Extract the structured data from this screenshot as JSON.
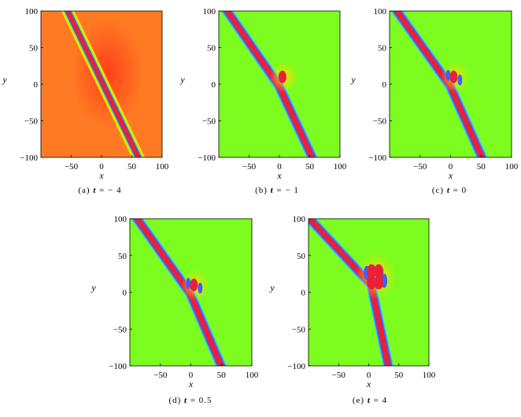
{
  "chart_data": [
    {
      "type": "heatmap",
      "panel": "a",
      "caption": {
        "prefix": "(a)",
        "var": "t",
        "rest": "= − 4"
      },
      "t": -4,
      "xlabel": "x",
      "ylabel": "y",
      "xticks": [
        "−50",
        "0",
        "50",
        "100"
      ],
      "xtick_values": [
        -50,
        0,
        50,
        100
      ],
      "yticks": [
        "100",
        "50",
        "0",
        "−50",
        "−100"
      ],
      "ytick_values": [
        100,
        50,
        0,
        -50,
        -100
      ],
      "xlim": [
        -100,
        100
      ],
      "ylim": [
        -100,
        100
      ],
      "background_color": "#ff7a22",
      "colors": {
        "peak": "#e8203a",
        "edge_low": "#4060ff",
        "edge_mid": "#ffe000",
        "green": "#7cfc1f"
      },
      "soliton_line": {
        "x_at_y100": -62,
        "x_at_y_minus100": 67
      },
      "lump": null
    },
    {
      "type": "heatmap",
      "panel": "b",
      "caption": {
        "prefix": "(b)",
        "var": "t",
        "rest": "= − 1"
      },
      "t": -1,
      "xlabel": "x",
      "ylabel": "y",
      "xticks": [
        "−50",
        "0",
        "50",
        "100"
      ],
      "xtick_values": [
        -50,
        0,
        50,
        100
      ],
      "yticks": [
        "100",
        "50",
        "0",
        "−50",
        "−100"
      ],
      "ytick_values": [
        100,
        50,
        0,
        -50,
        -100
      ],
      "xlim": [
        -100,
        100
      ],
      "ylim": [
        -100,
        100
      ],
      "background_color": "#7cfc1f",
      "colors": {
        "peak": "#e8203a",
        "edge_low": "#4060ff",
        "edge_mid": "#ffe000"
      },
      "soliton_line": {
        "x_at_y100": -90,
        "x_at_y_minus100": 55
      },
      "lump": {
        "x": 5,
        "y": 10
      }
    },
    {
      "type": "heatmap",
      "panel": "c",
      "caption": {
        "prefix": "(c)",
        "var": "t",
        "rest": "= 0"
      },
      "t": 0,
      "xlabel": "x",
      "ylabel": "y",
      "xticks": [
        "−50",
        "0",
        "50",
        "100"
      ],
      "xtick_values": [
        -50,
        0,
        50,
        100
      ],
      "yticks": [
        "100",
        "50",
        "0",
        "−50",
        "−100"
      ],
      "ytick_values": [
        100,
        50,
        0,
        -50,
        -100
      ],
      "xlim": [
        -100,
        100
      ],
      "ylim": [
        -100,
        100
      ],
      "background_color": "#7cfc1f",
      "colors": {
        "peak": "#e8203a",
        "edge_low": "#4060ff",
        "edge_mid": "#ffe000"
      },
      "soliton_line": {
        "x_at_y100": -92,
        "x_at_y_minus100": 52
      },
      "lump": {
        "x": 5,
        "y": 10
      }
    },
    {
      "type": "heatmap",
      "panel": "d",
      "caption": {
        "prefix": "(d)",
        "var": "t",
        "rest": "= 0.5"
      },
      "t": 0.5,
      "xlabel": "x",
      "ylabel": "y",
      "xticks": [
        "−50",
        "0",
        "50",
        "100"
      ],
      "xtick_values": [
        -50,
        0,
        50,
        100
      ],
      "yticks": [
        "100",
        "50",
        "0",
        "−50",
        "−100"
      ],
      "ytick_values": [
        100,
        50,
        0,
        -50,
        -100
      ],
      "xlim": [
        -100,
        100
      ],
      "ylim": [
        -100,
        100
      ],
      "background_color": "#7cfc1f",
      "colors": {
        "peak": "#e8203a",
        "edge_low": "#4060ff",
        "edge_mid": "#ffe000"
      },
      "soliton_line": {
        "x_at_y100": -92,
        "x_at_y_minus100": 50
      },
      "lump": {
        "x": 5,
        "y": 10
      }
    },
    {
      "type": "heatmap",
      "panel": "e",
      "caption": {
        "prefix": "(e)",
        "var": "t",
        "rest": "= 4"
      },
      "t": 4,
      "xlabel": "x",
      "ylabel": "y",
      "xticks": [
        "−50",
        "0",
        "50",
        "100"
      ],
      "xtick_values": [
        -50,
        0,
        50,
        100
      ],
      "yticks": [
        "100",
        "50",
        "0",
        "−50",
        "−100"
      ],
      "ytick_values": [
        100,
        50,
        0,
        -50,
        -100
      ],
      "xlim": [
        -100,
        100
      ],
      "ylim": [
        -100,
        100
      ],
      "background_color": "#7cfc1f",
      "colors": {
        "peak": "#e8203a",
        "edge_low": "#4060ff",
        "edge_mid": "#ffe000"
      },
      "soliton_line": {
        "x_at_y100": -105,
        "x_at_y_minus100": 30
      },
      "lump": {
        "x": 10,
        "y": 22
      }
    }
  ]
}
